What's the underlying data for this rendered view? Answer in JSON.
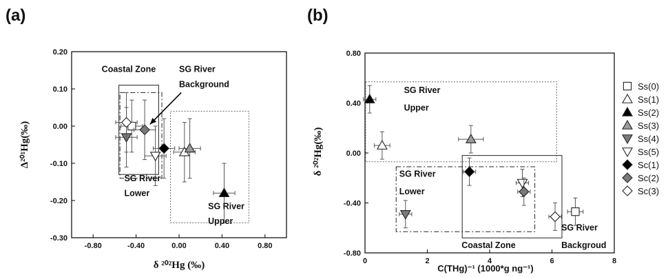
{
  "colors": {
    "open": "#ffffff",
    "black": "#000000",
    "gray": "#9a9a9a",
    "darkgray": "#7a7a7a",
    "errorbar": "#555555"
  },
  "legend": [
    {
      "label": "Ss(0)",
      "shape": "square",
      "fill": "open"
    },
    {
      "label": "Ss(1)",
      "shape": "triangle-up",
      "fill": "open"
    },
    {
      "label": "Ss(2)",
      "shape": "triangle-up",
      "fill": "black"
    },
    {
      "label": "Ss(3)",
      "shape": "triangle-up",
      "fill": "gray"
    },
    {
      "label": "Ss(4)",
      "shape": "triangle-down",
      "fill": "darkgray"
    },
    {
      "label": "Ss(5)",
      "shape": "triangle-down",
      "fill": "open"
    },
    {
      "label": "Sc(1)",
      "shape": "diamond",
      "fill": "black"
    },
    {
      "label": "Sc(2)",
      "shape": "diamond",
      "fill": "darkgray"
    },
    {
      "label": "Sc(3)",
      "shape": "diamond",
      "fill": "open"
    }
  ],
  "chart_data": [
    {
      "panel": "(a)",
      "type": "scatter",
      "xlabel": "δ ²⁰²Hg (‰)",
      "ylabel": "Δ²⁰¹Hg(‰)",
      "xlim": [
        -1.0,
        1.0
      ],
      "ylim": [
        -0.3,
        0.2
      ],
      "xticks": [
        "-0.80",
        "-0.40",
        "0.00",
        "0.40",
        "0.80"
      ],
      "xtick_values": [
        -0.8,
        -0.4,
        0.0,
        0.4,
        0.8
      ],
      "yticks": [
        "0.20",
        "0.10",
        "0.00",
        "-0.10",
        "-0.20",
        "-0.30"
      ],
      "ytick_values": [
        0.2,
        0.1,
        0.0,
        -0.1,
        -0.2,
        -0.3
      ],
      "grid": false,
      "points": [
        {
          "series": "Ss(0)",
          "x": -0.44,
          "y": 0.0,
          "xerr": 0.1,
          "yerr": 0.07
        },
        {
          "series": "Ss(1)",
          "x": 0.05,
          "y": -0.07,
          "xerr": 0.1,
          "yerr": 0.08
        },
        {
          "series": "Ss(2)",
          "x": 0.42,
          "y": -0.18,
          "xerr": 0.1,
          "yerr": 0.08
        },
        {
          "series": "Ss(3)",
          "x": 0.1,
          "y": -0.06,
          "xerr": 0.1,
          "yerr": 0.08
        },
        {
          "series": "Ss(4)",
          "x": -0.49,
          "y": -0.03,
          "xerr": 0.1,
          "yerr": 0.08
        },
        {
          "series": "Ss(5)",
          "x": -0.22,
          "y": -0.08,
          "xerr": 0.1,
          "yerr": 0.08
        },
        {
          "series": "Sc(1)",
          "x": -0.14,
          "y": -0.06,
          "xerr": 0.1,
          "yerr": 0.08
        },
        {
          "series": "Sc(2)",
          "x": -0.32,
          "y": -0.01,
          "xerr": 0.1,
          "yerr": 0.08
        },
        {
          "series": "Sc(3)",
          "x": -0.49,
          "y": 0.01,
          "xerr": 0.1,
          "yerr": 0.08
        }
      ],
      "regions": [
        {
          "style": "solid",
          "x0": -0.56,
          "x1": -0.19,
          "y0": -0.13,
          "y1": 0.11
        },
        {
          "style": "dashdot",
          "x0": -0.55,
          "x1": -0.16,
          "y0": -0.14,
          "y1": 0.09
        },
        {
          "style": "dotted",
          "x0": -0.08,
          "x1": 0.65,
          "y0": -0.26,
          "y1": 0.04
        }
      ],
      "annotations": [
        {
          "text": "Coastal Zone",
          "x": -0.72,
          "y": 0.145
        },
        {
          "text": "SG River",
          "x": 0.0,
          "y": 0.145
        },
        {
          "text": "Background",
          "x": 0.0,
          "y": 0.105
        },
        {
          "text": "SG River",
          "x": -0.51,
          "y": -0.148
        },
        {
          "text": "Lower",
          "x": -0.51,
          "y": -0.188
        },
        {
          "text": "SG River",
          "x": 0.27,
          "y": -0.223
        },
        {
          "text": "Upper",
          "x": 0.27,
          "y": -0.263
        }
      ],
      "arrow": {
        "from": [
          0.02,
          0.09
        ],
        "to": [
          -0.27,
          0.005
        ]
      }
    },
    {
      "panel": "(b)",
      "type": "scatter",
      "xlabel": "C(THg)⁻¹ (1000*g ng⁻¹)",
      "ylabel": "δ ²⁰²Hg(‰)",
      "xlim": [
        0,
        8
      ],
      "ylim": [
        -0.8,
        0.8
      ],
      "xticks": [
        "0",
        "2",
        "4",
        "6",
        "8"
      ],
      "xtick_values": [
        0,
        2,
        4,
        6,
        8
      ],
      "yticks": [
        "0.80",
        "0.40",
        "0.00",
        "-0.40",
        "-0.80"
      ],
      "ytick_values": [
        0.8,
        0.4,
        0.0,
        -0.4,
        -0.8
      ],
      "grid": false,
      "points": [
        {
          "series": "Ss(0)",
          "x": 6.75,
          "y": -0.47,
          "xerr": 0.25,
          "yerr": 0.11
        },
        {
          "series": "Ss(1)",
          "x": 0.55,
          "y": 0.06,
          "xerr": 0.25,
          "yerr": 0.11
        },
        {
          "series": "Ss(2)",
          "x": 0.15,
          "y": 0.43,
          "xerr": 0.2,
          "yerr": 0.11
        },
        {
          "series": "Ss(3)",
          "x": 3.4,
          "y": 0.11,
          "xerr": 0.4,
          "yerr": 0.11
        },
        {
          "series": "Ss(4)",
          "x": 1.3,
          "y": -0.49,
          "xerr": 0.2,
          "yerr": 0.11
        },
        {
          "series": "Ss(5)",
          "x": 5.05,
          "y": -0.24,
          "xerr": 0.2,
          "yerr": 0.11
        },
        {
          "series": "Sc(1)",
          "x": 3.35,
          "y": -0.15,
          "xerr": 0.2,
          "yerr": 0.11
        },
        {
          "series": "Sc(2)",
          "x": 5.1,
          "y": -0.31,
          "xerr": 0.2,
          "yerr": 0.11
        },
        {
          "series": "Sc(3)",
          "x": 6.1,
          "y": -0.51,
          "xerr": 0.2,
          "yerr": 0.11
        }
      ],
      "regions": [
        {
          "style": "dotted",
          "x0": 0.02,
          "x1": 6.15,
          "y0": -0.07,
          "y1": 0.57
        },
        {
          "style": "dashdot",
          "x0": 1.0,
          "x1": 5.45,
          "y0": -0.63,
          "y1": -0.11
        },
        {
          "style": "solid",
          "x0": 3.12,
          "x1": 6.32,
          "y0": -0.68,
          "y1": -0.02
        }
      ],
      "annotations": [
        {
          "text": "SG River",
          "x": 1.25,
          "y": 0.48
        },
        {
          "text": "Upper",
          "x": 1.25,
          "y": 0.34
        },
        {
          "text": "SG River",
          "x": 1.1,
          "y": -0.19
        },
        {
          "text": "Lower",
          "x": 1.1,
          "y": -0.33
        },
        {
          "text": "Coastal Zone",
          "x": 3.1,
          "y": -0.76
        },
        {
          "text": "SG River",
          "x": 6.3,
          "y": -0.62
        },
        {
          "text": "Backgroud",
          "x": 6.3,
          "y": -0.76
        }
      ]
    }
  ]
}
